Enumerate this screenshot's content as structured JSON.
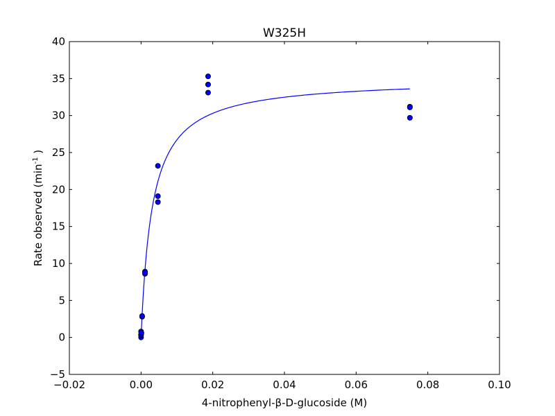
{
  "chart_data": {
    "type": "scatter",
    "title": "W325H",
    "xlabel": "4-nitrophenyl-β-D-glucoside (M)",
    "ylabel": {
      "prefix": "Rate observed (min",
      "superscript": "-1",
      "suffix": " )"
    },
    "xlim": [
      -0.02,
      0.1
    ],
    "ylim": [
      -5,
      40
    ],
    "xticks": [
      -0.02,
      0.0,
      0.02,
      0.04,
      0.06,
      0.08,
      0.1
    ],
    "xtick_labels": [
      "−0.02",
      "0.00",
      "0.02",
      "0.04",
      "0.06",
      "0.08",
      "0.10"
    ],
    "yticks": [
      -5,
      0,
      5,
      10,
      15,
      20,
      25,
      30,
      35,
      40
    ],
    "ytick_labels": [
      "−5",
      "0",
      "5",
      "10",
      "15",
      "20",
      "25",
      "30",
      "35",
      "40"
    ],
    "grid": false,
    "series": [
      {
        "kind": "scatter",
        "color": "#0000ff",
        "edge_color": "#000000",
        "points": [
          {
            "x": 0.0,
            "y": 0.0
          },
          {
            "x": 0.0,
            "y": 0.3
          },
          {
            "x": 0.0,
            "y": 0.8
          },
          {
            "x": 0.0,
            "y": 0.4
          },
          {
            "x": 0.0001,
            "y": 0.6
          },
          {
            "x": 0.0003,
            "y": 2.8
          },
          {
            "x": 0.0003,
            "y": 2.9
          },
          {
            "x": 0.0011,
            "y": 8.6
          },
          {
            "x": 0.0011,
            "y": 8.9
          },
          {
            "x": 0.0011,
            "y": 8.8
          },
          {
            "x": 0.0047,
            "y": 23.2
          },
          {
            "x": 0.0047,
            "y": 19.1
          },
          {
            "x": 0.0047,
            "y": 18.3
          },
          {
            "x": 0.0187,
            "y": 35.3
          },
          {
            "x": 0.0187,
            "y": 34.2
          },
          {
            "x": 0.0187,
            "y": 33.1
          },
          {
            "x": 0.075,
            "y": 31.2
          },
          {
            "x": 0.075,
            "y": 31.1
          },
          {
            "x": 0.075,
            "y": 29.7
          }
        ]
      },
      {
        "kind": "line",
        "color": "#0000ff",
        "fit": {
          "model": "michaelis-menten",
          "vmax": 35.0,
          "km": 0.0031,
          "x_range": [
            0.0,
            0.075
          ]
        }
      }
    ]
  }
}
